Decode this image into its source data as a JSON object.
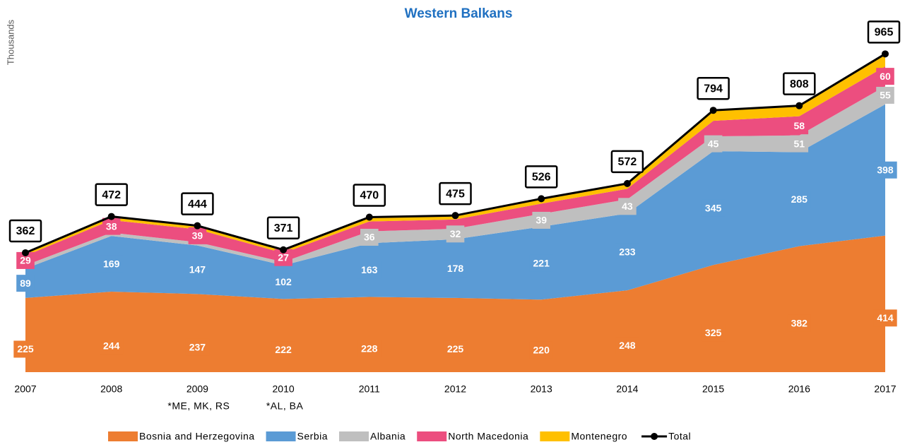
{
  "chart_data": {
    "type": "stacked-area",
    "title": "Western Balkans",
    "y_label": "Thousands",
    "categories": [
      "2007",
      "2008",
      "2009",
      "2010",
      "2011",
      "2012",
      "2013",
      "2014",
      "2015",
      "2016",
      "2017"
    ],
    "ylim": [
      0,
      1000
    ],
    "series": [
      {
        "name": "Bosnia and Herzegovina",
        "color": "#ED7D31",
        "values": [
          225,
          244,
          237,
          222,
          228,
          225,
          220,
          248,
          325,
          382,
          414
        ],
        "value_labels": [
          "225",
          "244",
          "237",
          "222",
          "228",
          "225",
          "220",
          "248",
          "325",
          "382",
          "414"
        ]
      },
      {
        "name": "Serbia",
        "color": "#5B9BD5",
        "values": [
          89,
          169,
          147,
          102,
          163,
          178,
          221,
          233,
          345,
          285,
          398
        ],
        "value_labels": [
          "89",
          "169",
          "147",
          "102",
          "163",
          "178",
          "221",
          "233",
          "345",
          "285",
          "398"
        ]
      },
      {
        "name": "Albania",
        "color": "#BFBFBF",
        "values": [
          10,
          10,
          10,
          10,
          36,
          32,
          39,
          43,
          45,
          51,
          55
        ],
        "value_labels": [
          null,
          null,
          null,
          null,
          "36",
          "32",
          "39",
          "43",
          "45",
          "51",
          "55"
        ]
      },
      {
        "name": "North Macedonia",
        "color": "#EC4E7F",
        "values": [
          29,
          38,
          39,
          27,
          30,
          28,
          31,
          32,
          47,
          58,
          60
        ],
        "value_labels": [
          "29",
          "38",
          "39",
          "27",
          null,
          null,
          null,
          null,
          null,
          "58",
          "60"
        ]
      },
      {
        "name": "Montenegro",
        "color": "#FFC000",
        "values": [
          9,
          11,
          11,
          10,
          13,
          12,
          15,
          16,
          32,
          32,
          38
        ],
        "value_labels": [
          null,
          null,
          null,
          null,
          null,
          null,
          null,
          null,
          null,
          null,
          null
        ]
      }
    ],
    "total": {
      "name": "Total",
      "color": "#000000",
      "values": [
        362,
        472,
        444,
        371,
        470,
        475,
        526,
        572,
        794,
        808,
        965
      ]
    },
    "annotations": [
      {
        "category": "2009",
        "text": "*ME, MK, RS"
      },
      {
        "category": "2010",
        "text": "*AL, BA"
      }
    ]
  }
}
